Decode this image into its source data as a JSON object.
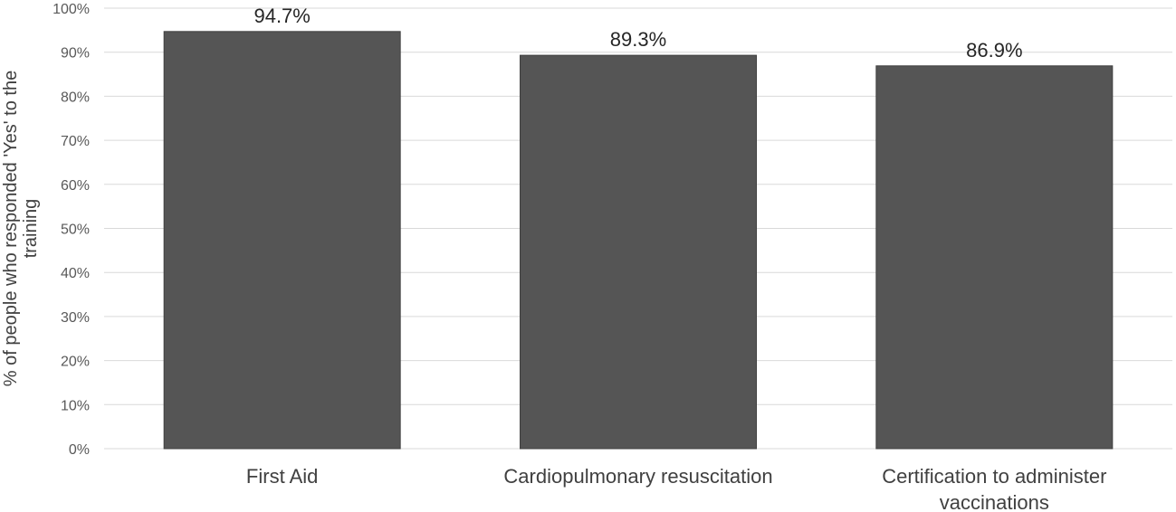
{
  "chart_data": {
    "type": "bar",
    "title": "",
    "xlabel": "",
    "ylabel_lines": [
      "% of people who responded 'Yes' to the",
      "training"
    ],
    "categories": [
      [
        "First Aid"
      ],
      [
        "Cardiopulmonary resuscitation"
      ],
      [
        "Certification to administer",
        "vaccinations"
      ]
    ],
    "values": [
      94.7,
      89.3,
      86.9
    ],
    "data_labels": [
      "94.7%",
      "89.3%",
      "86.9%"
    ],
    "ylim": [
      0,
      100
    ],
    "yticks": [
      0,
      10,
      20,
      30,
      40,
      50,
      60,
      70,
      80,
      90,
      100
    ],
    "ytick_labels": [
      "0%",
      "10%",
      "20%",
      "30%",
      "40%",
      "50%",
      "60%",
      "70%",
      "80%",
      "90%",
      "100%"
    ],
    "grid": true,
    "legend": "none",
    "colors": {
      "bar": "#555555",
      "bar_edge": "#404040",
      "grid": "#d9d9d9"
    }
  }
}
